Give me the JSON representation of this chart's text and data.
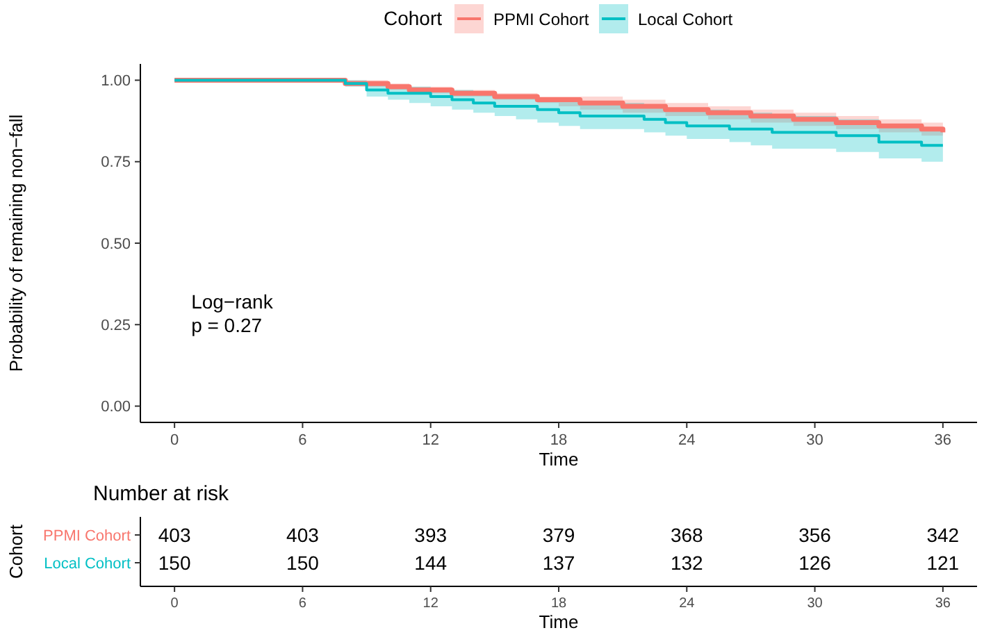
{
  "chart_data": [
    {
      "type": "step",
      "xlabel": "Time",
      "ylabel": "Probability of remaining non−fall",
      "legend_title": "Cohort",
      "legend": "top",
      "x": [
        0,
        8,
        9,
        10,
        11,
        12,
        13,
        14,
        15,
        16,
        17,
        18,
        19,
        20,
        21,
        22,
        23,
        24,
        25,
        26,
        27,
        28,
        29,
        30,
        31,
        32,
        33,
        34,
        35,
        36
      ],
      "series": [
        {
          "name": "PPMI Cohort",
          "color": "#f8766d",
          "values": [
            1,
            0.99,
            0.99,
            0.98,
            0.97,
            0.97,
            0.96,
            0.96,
            0.95,
            0.95,
            0.94,
            0.94,
            0.93,
            0.93,
            0.92,
            0.92,
            0.91,
            0.91,
            0.9,
            0.9,
            0.89,
            0.89,
            0.88,
            0.88,
            0.87,
            0.87,
            0.86,
            0.86,
            0.85,
            0.84
          ],
          "lower": [
            1,
            0.99,
            0.98,
            0.97,
            0.96,
            0.96,
            0.95,
            0.95,
            0.94,
            0.94,
            0.93,
            0.92,
            0.91,
            0.91,
            0.9,
            0.9,
            0.89,
            0.89,
            0.88,
            0.88,
            0.87,
            0.87,
            0.86,
            0.86,
            0.85,
            0.85,
            0.84,
            0.84,
            0.83,
            0.82
          ],
          "upper": [
            1,
            1,
            1,
            0.99,
            0.98,
            0.98,
            0.97,
            0.97,
            0.96,
            0.96,
            0.95,
            0.95,
            0.95,
            0.95,
            0.94,
            0.94,
            0.93,
            0.93,
            0.92,
            0.92,
            0.91,
            0.91,
            0.9,
            0.9,
            0.89,
            0.89,
            0.88,
            0.88,
            0.87,
            0.86
          ]
        },
        {
          "name": "Local Cohort",
          "color": "#00bfc4",
          "values": [
            1,
            0.99,
            0.97,
            0.96,
            0.96,
            0.95,
            0.94,
            0.93,
            0.92,
            0.92,
            0.91,
            0.9,
            0.89,
            0.89,
            0.89,
            0.88,
            0.87,
            0.86,
            0.86,
            0.85,
            0.85,
            0.84,
            0.84,
            0.84,
            0.83,
            0.83,
            0.81,
            0.81,
            0.8,
            0.8
          ],
          "lower": [
            1,
            0.98,
            0.95,
            0.94,
            0.93,
            0.92,
            0.91,
            0.9,
            0.89,
            0.88,
            0.87,
            0.86,
            0.85,
            0.85,
            0.85,
            0.84,
            0.83,
            0.82,
            0.82,
            0.81,
            0.8,
            0.79,
            0.79,
            0.79,
            0.78,
            0.78,
            0.76,
            0.76,
            0.75,
            0.75
          ],
          "upper": [
            1,
            1,
            0.99,
            0.98,
            0.98,
            0.97,
            0.97,
            0.96,
            0.95,
            0.95,
            0.94,
            0.94,
            0.93,
            0.93,
            0.93,
            0.92,
            0.91,
            0.91,
            0.91,
            0.9,
            0.9,
            0.89,
            0.89,
            0.89,
            0.88,
            0.88,
            0.86,
            0.86,
            0.85,
            0.85
          ]
        }
      ],
      "xlim": [
        -1.6,
        37.6
      ],
      "xticks": [
        0,
        6,
        12,
        18,
        24,
        30,
        36
      ],
      "ylim": [
        -0.05,
        1.05
      ],
      "yticks": [
        {
          "value": 0,
          "label": "0.00"
        },
        {
          "value": 0.25,
          "label": "0.25"
        },
        {
          "value": 0.5,
          "label": "0.50"
        },
        {
          "value": 0.75,
          "label": "0.75"
        },
        {
          "value": 1,
          "label": "1.00"
        }
      ],
      "grid": false,
      "annotations": [
        "Log−rank\np = 0.27"
      ]
    },
    {
      "type": "heatmap",
      "title": "Number at risk",
      "xlabel": "Time",
      "ylabel": "Cohort",
      "data_labels": true,
      "categories": [
        "0",
        "6",
        "12",
        "18",
        "24",
        "30",
        "36"
      ],
      "y_categories": [
        "PPMI Cohort",
        "Local Cohort"
      ],
      "cells": [
        [
          403,
          403,
          393,
          379,
          368,
          356,
          342
        ],
        [
          150,
          150,
          144,
          137,
          132,
          126,
          121
        ]
      ]
    }
  ]
}
